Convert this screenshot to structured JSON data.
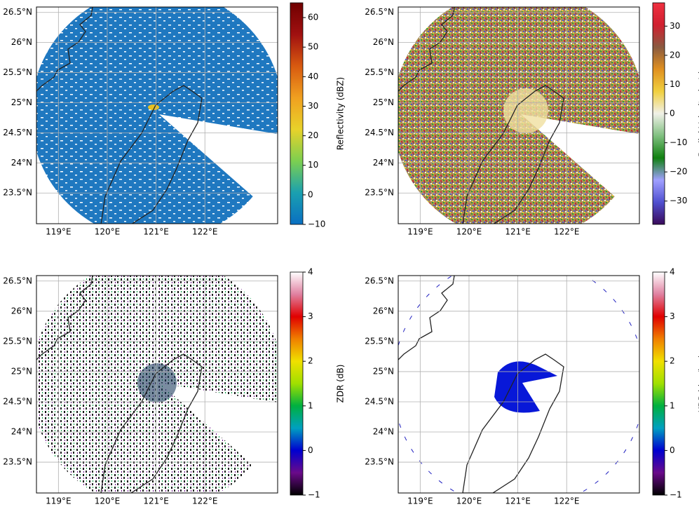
{
  "chart_data": [
    {
      "type": "map",
      "colorbar_label": "Reflectivity (dBZ)",
      "clim": [
        -10,
        65
      ],
      "cticks": [
        {
          "value": -10,
          "label": "−10"
        },
        0,
        10,
        20,
        30,
        40,
        50,
        60
      ],
      "colors": [
        "#0a6fc2",
        "#1aa0b0",
        "#7ccf50",
        "#e8d22a",
        "#f0a020",
        "#d85a10",
        "#a01010",
        "#700000"
      ],
      "xlim": [
        118.55,
        123.49
      ],
      "ylim": [
        22.99,
        26.59
      ],
      "xticks": [
        {
          "value": 119,
          "label": "119°E"
        },
        {
          "value": 120,
          "label": "120°E"
        },
        {
          "value": 121,
          "label": "121°E"
        },
        {
          "value": 122,
          "label": "122°E"
        }
      ],
      "yticks": [
        {
          "value": 23.5,
          "label": "23.5°N"
        },
        {
          "value": 24,
          "label": "24°N"
        },
        {
          "value": 24.5,
          "label": "24.5°N"
        },
        {
          "value": 25,
          "label": "25°N"
        },
        {
          "value": 25.5,
          "label": "25.5°N"
        },
        {
          "value": 26,
          "label": "26°N"
        },
        {
          "value": 26.5,
          "label": "26.5°N"
        }
      ],
      "grid": true
    },
    {
      "type": "map",
      "colorbar_label": "Radial Velocity (m/s)",
      "clim": [
        -38,
        38
      ],
      "cticks": [
        {
          "value": -30,
          "label": "−30"
        },
        {
          "value": -20,
          "label": "−20"
        },
        {
          "value": -10,
          "label": "−10"
        },
        0,
        10,
        20,
        30
      ],
      "colors": [
        "#3a0a5a",
        "#5050d0",
        "#a0a0ff",
        "#108010",
        "#80c080",
        "#f0f0e8",
        "#f0d040",
        "#e09020",
        "#8a5a40",
        "#d02030",
        "#f03040"
      ],
      "xlim": [
        118.55,
        123.49
      ],
      "ylim": [
        22.99,
        26.59
      ],
      "xticks": [
        {
          "value": 119,
          "label": "119°E"
        },
        {
          "value": 120,
          "label": "120°E"
        },
        {
          "value": 121,
          "label": "121°E"
        },
        {
          "value": 122,
          "label": "122°E"
        }
      ],
      "yticks": [
        {
          "value": 23.5,
          "label": "23.5°N"
        },
        {
          "value": 24,
          "label": "24°N"
        },
        {
          "value": 24.5,
          "label": "24.5°N"
        },
        {
          "value": 25,
          "label": "25°N"
        },
        {
          "value": 25.5,
          "label": "25.5°N"
        },
        {
          "value": 26,
          "label": "26°N"
        },
        {
          "value": 26.5,
          "label": "26.5°N"
        }
      ],
      "grid": true
    },
    {
      "type": "map",
      "colorbar_label": "ZDR (dB)",
      "clim": [
        -1,
        4
      ],
      "cticks": [
        {
          "value": -1,
          "label": "−1"
        },
        0,
        1,
        2,
        3,
        4
      ],
      "colors": [
        "#000000",
        "#6a0a8a",
        "#0000d0",
        "#00a0c0",
        "#00b040",
        "#a0e000",
        "#f0e000",
        "#f08000",
        "#e00000",
        "#e080a0",
        "#ffffff"
      ],
      "xlim": [
        118.55,
        123.49
      ],
      "ylim": [
        22.99,
        26.59
      ],
      "xticks": [
        {
          "value": 119,
          "label": "119°E"
        },
        {
          "value": 120,
          "label": "120°E"
        },
        {
          "value": 121,
          "label": "121°E"
        },
        {
          "value": 122,
          "label": "122°E"
        }
      ],
      "yticks": [
        {
          "value": 23.5,
          "label": "23.5°N"
        },
        {
          "value": 24,
          "label": "24°N"
        },
        {
          "value": 24.5,
          "label": "24.5°N"
        },
        {
          "value": 25,
          "label": "25°N"
        },
        {
          "value": 25.5,
          "label": "25.5°N"
        },
        {
          "value": 26,
          "label": "26°N"
        },
        {
          "value": 26.5,
          "label": "26.5°N"
        }
      ],
      "grid": true
    },
    {
      "type": "map",
      "colorbar_label": "KDP (deg/km)",
      "clim": [
        -1,
        4
      ],
      "cticks": [
        {
          "value": -1,
          "label": "−1"
        },
        0,
        1,
        2,
        3,
        4
      ],
      "colors": [
        "#000000",
        "#6a0a8a",
        "#0000d0",
        "#00a0c0",
        "#00b040",
        "#a0e000",
        "#f0e000",
        "#f08000",
        "#e00000",
        "#e080a0",
        "#ffffff"
      ],
      "xlim": [
        118.55,
        123.49
      ],
      "ylim": [
        22.99,
        26.59
      ],
      "xticks": [
        {
          "value": 119,
          "label": "119°E"
        },
        {
          "value": 120,
          "label": "120°E"
        },
        {
          "value": 121,
          "label": "121°E"
        },
        {
          "value": 122,
          "label": "122°E"
        }
      ],
      "yticks": [
        {
          "value": 23.5,
          "label": "23.5°N"
        },
        {
          "value": 24,
          "label": "24°N"
        },
        {
          "value": 24.5,
          "label": "24.5°N"
        },
        {
          "value": 25,
          "label": "25°N"
        },
        {
          "value": 25.5,
          "label": "25.5°N"
        },
        {
          "value": 26,
          "label": "26°N"
        },
        {
          "value": 26.5,
          "label": "26.5°N"
        }
      ],
      "grid": true
    }
  ]
}
